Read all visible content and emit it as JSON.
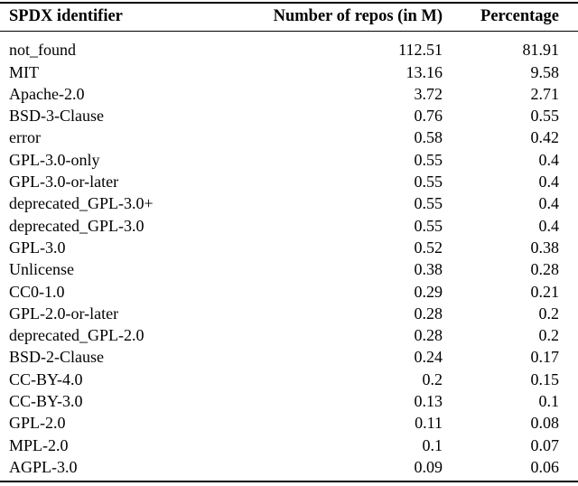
{
  "colors": {
    "background": "#ffffff",
    "text": "#000000",
    "rule": "#000000"
  },
  "table": {
    "columns": [
      {
        "label": "SPDX identifier",
        "align": "left"
      },
      {
        "label": "Number of repos (in M)",
        "align": "right"
      },
      {
        "label": "Percentage",
        "align": "right"
      }
    ],
    "rows": [
      {
        "identifier": "not_found",
        "repos": "112.51",
        "percentage": "81.91"
      },
      {
        "identifier": "MIT",
        "repos": "13.16",
        "percentage": "9.58"
      },
      {
        "identifier": "Apache-2.0",
        "repos": "3.72",
        "percentage": "2.71"
      },
      {
        "identifier": "BSD-3-Clause",
        "repos": "0.76",
        "percentage": "0.55"
      },
      {
        "identifier": "error",
        "repos": "0.58",
        "percentage": "0.42"
      },
      {
        "identifier": "GPL-3.0-only",
        "repos": "0.55",
        "percentage": "0.4"
      },
      {
        "identifier": "GPL-3.0-or-later",
        "repos": "0.55",
        "percentage": "0.4"
      },
      {
        "identifier": "deprecated_GPL-3.0+",
        "repos": "0.55",
        "percentage": "0.4"
      },
      {
        "identifier": "deprecated_GPL-3.0",
        "repos": "0.55",
        "percentage": "0.4"
      },
      {
        "identifier": "GPL-3.0",
        "repos": "0.52",
        "percentage": "0.38"
      },
      {
        "identifier": "Unlicense",
        "repos": "0.38",
        "percentage": "0.28"
      },
      {
        "identifier": "CC0-1.0",
        "repos": "0.29",
        "percentage": "0.21"
      },
      {
        "identifier": "GPL-2.0-or-later",
        "repos": "0.28",
        "percentage": "0.2"
      },
      {
        "identifier": "deprecated_GPL-2.0",
        "repos": "0.28",
        "percentage": "0.2"
      },
      {
        "identifier": "BSD-2-Clause",
        "repos": "0.24",
        "percentage": "0.17"
      },
      {
        "identifier": "CC-BY-4.0",
        "repos": "0.2",
        "percentage": "0.15"
      },
      {
        "identifier": "CC-BY-3.0",
        "repos": "0.13",
        "percentage": "0.1"
      },
      {
        "identifier": "GPL-2.0",
        "repos": "0.11",
        "percentage": "0.08"
      },
      {
        "identifier": "MPL-2.0",
        "repos": "0.1",
        "percentage": "0.07"
      },
      {
        "identifier": "AGPL-3.0",
        "repos": "0.09",
        "percentage": "0.06"
      }
    ]
  }
}
